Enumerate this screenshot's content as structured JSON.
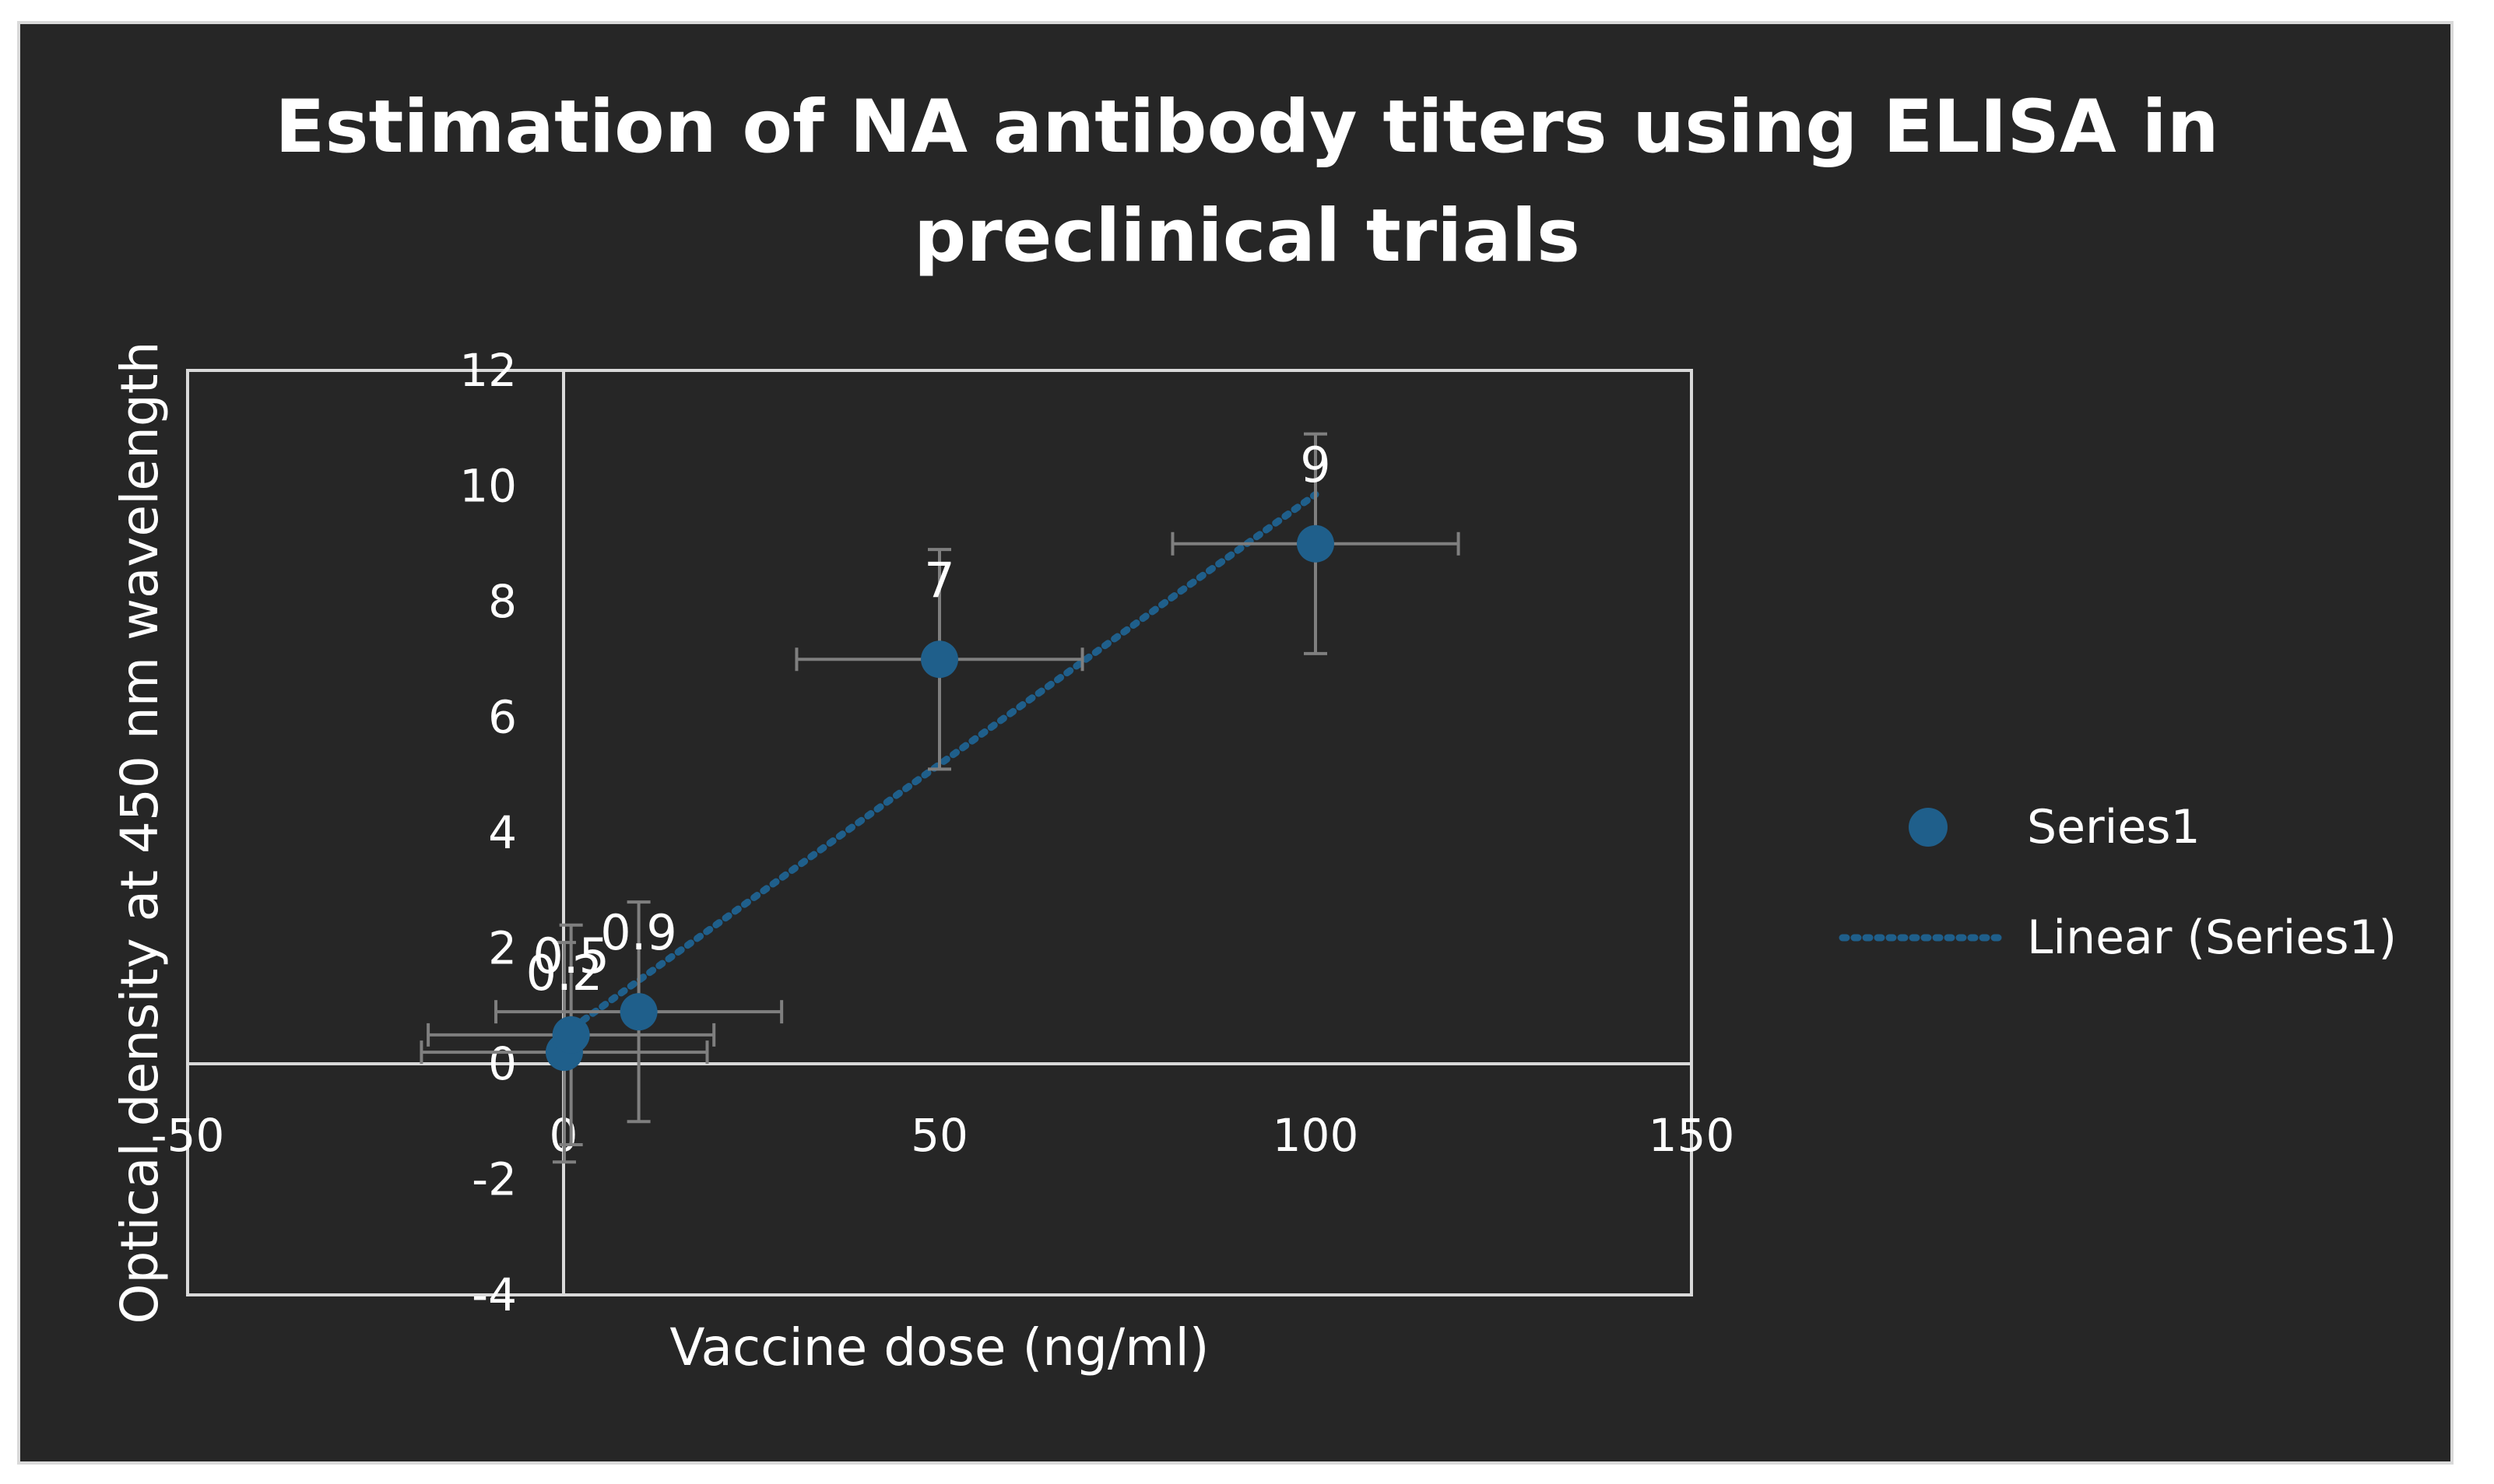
{
  "chart_data": {
    "type": "scatter",
    "title": "Estimation of NA antibody titers using ELISA in preclinical trials",
    "title_lines": [
      "Estimation of NA antibody titers using ELISA in",
      "preclinical trials"
    ],
    "xlabel": "Vaccine dose (ng/ml)",
    "ylabel": "Optical density at 450 nm wavelength",
    "xlim": [
      -50,
      150
    ],
    "ylim": [
      -4,
      12
    ],
    "x_ticks": [
      "-50",
      "0",
      "50",
      "100",
      "150"
    ],
    "y_ticks": [
      "-4",
      "-2",
      "0",
      "2",
      "4",
      "6",
      "8",
      "10",
      "12"
    ],
    "series": [
      {
        "name": "Series1",
        "color": "#1f5f8b",
        "points": [
          {
            "x": 0.1,
            "y": 0.2,
            "label": "0.2",
            "x_err": 19,
            "y_err": 1.9
          },
          {
            "x": 1,
            "y": 0.5,
            "label": "0.5",
            "x_err": 19,
            "y_err": 1.9
          },
          {
            "x": 10,
            "y": 0.9,
            "label": "0.9",
            "x_err": 19,
            "y_err": 1.9
          },
          {
            "x": 50,
            "y": 7,
            "label": "7",
            "x_err": 19,
            "y_err": 1.9
          },
          {
            "x": 100,
            "y": 9,
            "label": "9",
            "x_err": 19,
            "y_err": 1.9
          }
        ]
      }
    ],
    "trendline": {
      "name": "Linear (Series1)",
      "type": "linear",
      "style": "dotted",
      "color": "#1f5f8b"
    },
    "error_bar_color": "#7f7f7f",
    "grid": false,
    "legend_position": "right"
  }
}
